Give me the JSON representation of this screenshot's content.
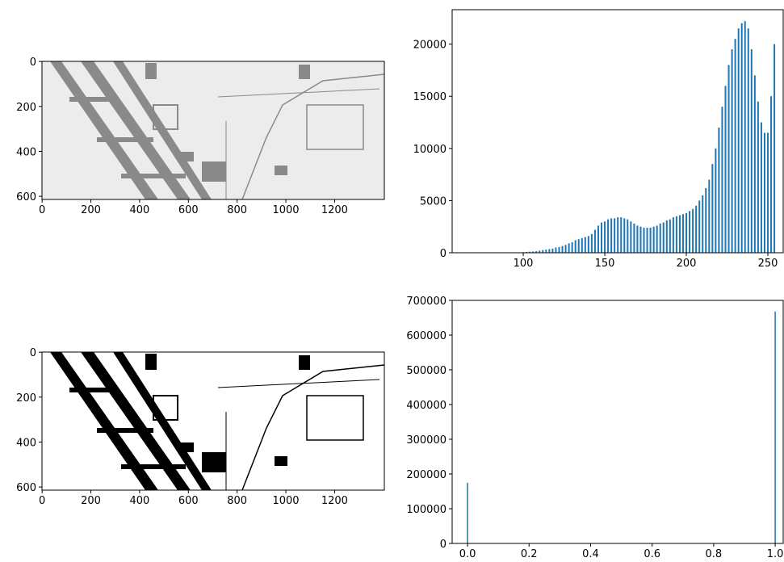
{
  "chart_data": [
    {
      "type": "image",
      "xlim": [
        -0.5,
        1404
      ],
      "ylim": [
        614,
        -0.5
      ],
      "xticks": [
        0,
        200,
        400,
        600,
        800,
        1000,
        1200
      ],
      "yticks": [
        0,
        200,
        400,
        600
      ]
    },
    {
      "type": "bar",
      "color": "#1f77b4",
      "bar_width": 1,
      "xlim": [
        56.4,
        259.4
      ],
      "ylim": [
        0,
        23300
      ],
      "xticks": [
        100,
        150,
        200,
        250
      ],
      "yticks": [
        0,
        5000,
        10000,
        15000,
        20000
      ],
      "x": [
        100,
        102,
        104,
        106,
        108,
        110,
        112,
        114,
        116,
        118,
        120,
        122,
        124,
        126,
        128,
        130,
        132,
        134,
        136,
        138,
        140,
        142,
        144,
        146,
        148,
        150,
        152,
        154,
        156,
        158,
        160,
        162,
        164,
        166,
        168,
        170,
        172,
        174,
        176,
        178,
        180,
        182,
        184,
        186,
        188,
        190,
        192,
        194,
        196,
        198,
        200,
        202,
        204,
        206,
        208,
        210,
        212,
        214,
        216,
        218,
        220,
        222,
        224,
        226,
        228,
        230,
        232,
        234,
        236,
        238,
        240,
        242,
        244,
        246,
        248,
        250,
        252,
        254
      ],
      "values": [
        50,
        80,
        100,
        120,
        150,
        200,
        250,
        300,
        350,
        400,
        500,
        550,
        650,
        750,
        900,
        1000,
        1200,
        1300,
        1400,
        1500,
        1600,
        1800,
        2200,
        2600,
        2900,
        3000,
        3200,
        3300,
        3300,
        3400,
        3400,
        3300,
        3200,
        3000,
        2800,
        2600,
        2500,
        2400,
        2400,
        2400,
        2500,
        2600,
        2800,
        2900,
        3100,
        3200,
        3400,
        3500,
        3600,
        3700,
        3800,
        4000,
        4200,
        4500,
        5000,
        5500,
        6200,
        7000,
        8500,
        10000,
        12000,
        14000,
        16000,
        18000,
        19500,
        20500,
        21500,
        22000,
        22200,
        21500,
        19500,
        17000,
        14500,
        12500,
        11500,
        11500,
        15000,
        20000
      ]
    },
    {
      "type": "image",
      "xlim": [
        -0.5,
        1404
      ],
      "ylim": [
        614,
        -0.5
      ],
      "xticks": [
        0,
        200,
        400,
        600,
        800,
        1000,
        1200
      ],
      "yticks": [
        0,
        200,
        400,
        600
      ]
    },
    {
      "type": "bar",
      "color": "#1f77b4",
      "bar_width": 0.004,
      "xlim": [
        -0.05,
        1.026
      ],
      "ylim": [
        0,
        700000
      ],
      "xticks": [
        {
          "value": 0,
          "label": "0.0"
        },
        0.2,
        0.4,
        0.6,
        0.8,
        {
          "value": 1,
          "label": "1.0"
        }
      ],
      "yticks": [
        0,
        100000,
        200000,
        300000,
        400000,
        500000,
        600000,
        700000
      ],
      "x": [
        0,
        1
      ],
      "values": [
        175000,
        668000
      ]
    }
  ]
}
